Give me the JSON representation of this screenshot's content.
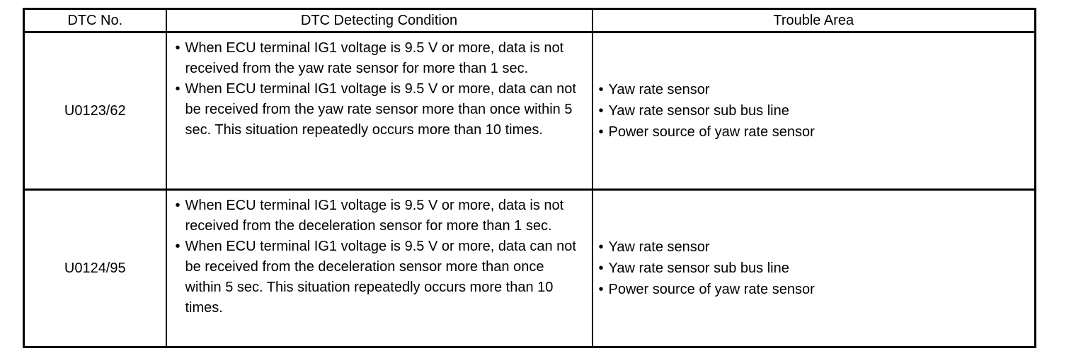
{
  "table": {
    "headers": {
      "dtc_no": "DTC No.",
      "condition": "DTC Detecting Condition",
      "trouble_area": "Trouble Area"
    },
    "rows": [
      {
        "dtc_no": "U0123/62",
        "conditions": [
          "When ECU terminal IG1 voltage is 9.5 V or more, data is not received from the yaw rate sensor for more than 1 sec.",
          "When ECU terminal IG1 voltage is 9.5 V or more, data can not be received from the yaw rate sensor more than once within 5 sec. This situation repeatedly occurs more than 10 times."
        ],
        "trouble_areas": [
          "Yaw rate sensor",
          "Yaw rate sensor sub bus line",
          "Power source of yaw rate sensor"
        ]
      },
      {
        "dtc_no": "U0124/95",
        "conditions": [
          "When ECU terminal IG1 voltage is 9.5 V or more, data is not received from the deceleration sensor for more than 1 sec.",
          "When ECU terminal IG1 voltage is 9.5 V or more, data can not be received from the deceleration sensor more than once within 5 sec. This situation repeatedly occurs more than 10 times."
        ],
        "trouble_areas": [
          "Yaw rate sensor",
          "Yaw rate sensor sub bus line",
          "Power source of yaw rate sensor"
        ]
      }
    ]
  },
  "colors": {
    "border": "#000000",
    "text": "#000000",
    "background": "#ffffff"
  }
}
